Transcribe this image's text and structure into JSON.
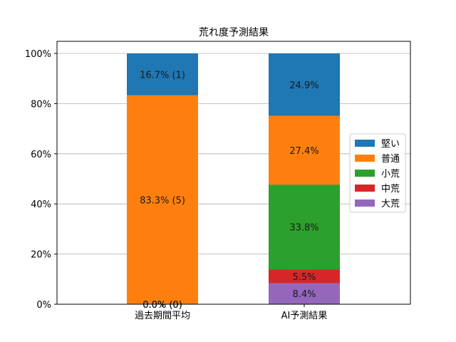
{
  "chart_data": {
    "type": "bar",
    "stacked": true,
    "title": "荒れ度予測結果",
    "categories": [
      "過去期間平均",
      "AI予測結果"
    ],
    "series": [
      {
        "name": "大荒",
        "color": "#9467bd",
        "values": [
          0.0,
          8.4
        ],
        "labels": [
          "0.0% (0)",
          "8.4%"
        ]
      },
      {
        "name": "中荒",
        "color": "#d62728",
        "values": [
          0.0,
          5.5
        ],
        "labels": [
          "0.0% (0)",
          "5.5%"
        ]
      },
      {
        "name": "小荒",
        "color": "#2ca02c",
        "values": [
          0.0,
          33.8
        ],
        "labels": [
          "0.0% (0)",
          "33.8%"
        ]
      },
      {
        "name": "普通",
        "color": "#ff7f0e",
        "values": [
          83.3,
          27.4
        ],
        "labels": [
          "83.3% (5)",
          "27.4%"
        ]
      },
      {
        "name": "堅い",
        "color": "#1f77b4",
        "values": [
          16.7,
          24.9
        ],
        "labels": [
          "16.7% (1)",
          "24.9%"
        ]
      }
    ],
    "legend_order": [
      "堅い",
      "普通",
      "小荒",
      "中荒",
      "大荒"
    ],
    "ylim": [
      0,
      100
    ],
    "yticks": [
      "0%",
      "20%",
      "40%",
      "60%",
      "80%",
      "100%"
    ],
    "ytick_values": [
      0,
      20,
      40,
      60,
      80,
      100
    ],
    "grid": "horizontal",
    "legend_position": "right"
  }
}
